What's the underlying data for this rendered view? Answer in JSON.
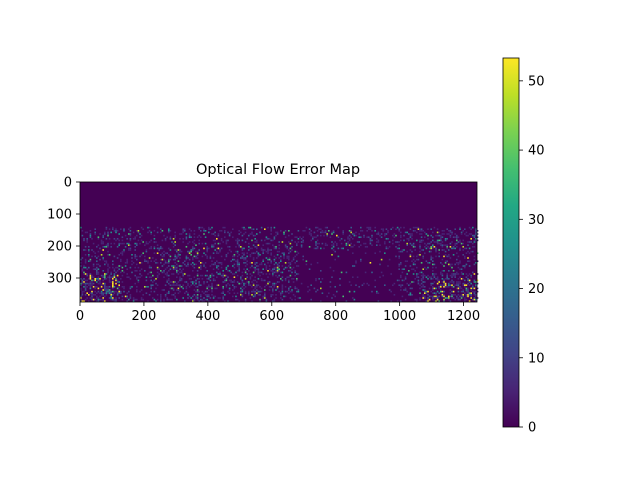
{
  "chart_data": {
    "type": "heatmap",
    "title": "Optical Flow Error Map",
    "xlabel": "",
    "ylabel": "",
    "x_range": [
      0,
      1242
    ],
    "y_range": [
      0,
      375
    ],
    "x_ticks": [
      0,
      200,
      400,
      600,
      800,
      1000,
      1200
    ],
    "y_ticks": [
      0,
      100,
      200,
      300
    ],
    "y_inverted": true,
    "colormap": "viridis",
    "colorbar": {
      "range": [
        0,
        53.3
      ],
      "ticks": [
        0,
        10,
        20,
        30,
        40,
        50
      ]
    },
    "grid": false,
    "legend": "none"
  }
}
